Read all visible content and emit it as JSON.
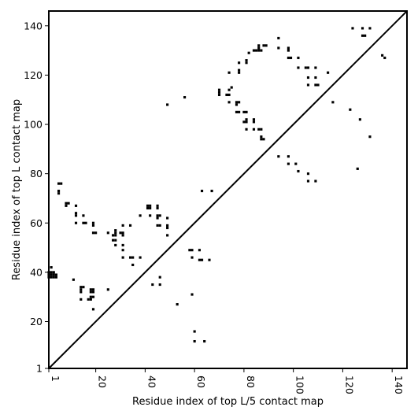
{
  "chart_data": {
    "type": "scatter",
    "title": "",
    "xlabel": "Residue index of top L/5 contact map",
    "ylabel": "Residue index of top L contact map",
    "xlim": [
      1,
      146
    ],
    "ylim": [
      1,
      146
    ],
    "xticks": [
      1,
      20,
      40,
      60,
      80,
      100,
      120,
      140
    ],
    "yticks": [
      1,
      20,
      40,
      60,
      80,
      100,
      120,
      140
    ],
    "grid": false,
    "legend": "none",
    "marker_color": "#000000",
    "diagonal": [
      [
        1,
        1
      ],
      [
        146,
        146
      ]
    ],
    "upper_triangle_contacts": [
      [
        94,
        135
      ],
      [
        94,
        131
      ],
      [
        88,
        132
      ],
      [
        89,
        132
      ],
      [
        86,
        132
      ],
      [
        86,
        131
      ],
      [
        84,
        130
      ],
      [
        85,
        130
      ],
      [
        86,
        130
      ],
      [
        87,
        130
      ],
      [
        82,
        129
      ],
      [
        81,
        126
      ],
      [
        81,
        125
      ],
      [
        78,
        125
      ],
      [
        78,
        122
      ],
      [
        78,
        121
      ],
      [
        74,
        121
      ],
      [
        70,
        114
      ],
      [
        70,
        113
      ],
      [
        70,
        112
      ],
      [
        74,
        114
      ],
      [
        73,
        112
      ],
      [
        74,
        112
      ],
      [
        74,
        109
      ],
      [
        77,
        109
      ],
      [
        78,
        109
      ],
      [
        77,
        108
      ],
      [
        77,
        105
      ],
      [
        78,
        105
      ],
      [
        80,
        105
      ],
      [
        81,
        105
      ],
      [
        80,
        101
      ],
      [
        81,
        102
      ],
      [
        81,
        101
      ],
      [
        84,
        102
      ],
      [
        84,
        101
      ],
      [
        81,
        98
      ],
      [
        84,
        98
      ],
      [
        86,
        98
      ],
      [
        87,
        98
      ],
      [
        87,
        95
      ],
      [
        87,
        94
      ],
      [
        88,
        94
      ],
      [
        75,
        115
      ],
      [
        49,
        108
      ],
      [
        56,
        111
      ],
      [
        98,
        131
      ],
      [
        98,
        130
      ],
      [
        98,
        127
      ],
      [
        99,
        127
      ],
      [
        102,
        127
      ],
      [
        102,
        123
      ],
      [
        105,
        123
      ],
      [
        106,
        123
      ],
      [
        109,
        123
      ],
      [
        106,
        119
      ],
      [
        109,
        119
      ],
      [
        106,
        116
      ],
      [
        109,
        116
      ],
      [
        110,
        116
      ],
      [
        114,
        121
      ],
      [
        116,
        109
      ],
      [
        123,
        106
      ],
      [
        127,
        102
      ],
      [
        131,
        95
      ],
      [
        124,
        139
      ],
      [
        128,
        139
      ],
      [
        131,
        139
      ],
      [
        128,
        136
      ],
      [
        129,
        136
      ],
      [
        136,
        128
      ],
      [
        137,
        127
      ],
      [
        94,
        87
      ],
      [
        98,
        87
      ],
      [
        98,
        84
      ],
      [
        101,
        84
      ],
      [
        102,
        81
      ],
      [
        106,
        80
      ],
      [
        106,
        77
      ],
      [
        109,
        77
      ],
      [
        126,
        82
      ]
    ],
    "lower_triangle_contacts": [
      [
        1,
        40
      ],
      [
        1,
        39
      ],
      [
        1,
        38
      ],
      [
        2,
        40
      ],
      [
        2,
        39
      ],
      [
        2,
        38
      ],
      [
        3,
        40
      ],
      [
        3,
        39
      ],
      [
        3,
        38
      ],
      [
        4,
        39
      ],
      [
        4,
        38
      ],
      [
        2,
        42
      ],
      [
        5,
        76
      ],
      [
        6,
        76
      ],
      [
        5,
        73
      ],
      [
        5,
        72
      ],
      [
        8,
        68
      ],
      [
        9,
        68
      ],
      [
        8,
        67
      ],
      [
        12,
        67
      ],
      [
        12,
        64
      ],
      [
        12,
        63
      ],
      [
        12,
        60
      ],
      [
        15,
        63
      ],
      [
        15,
        60
      ],
      [
        16,
        60
      ],
      [
        19,
        60
      ],
      [
        19,
        59
      ],
      [
        19,
        56
      ],
      [
        20,
        56
      ],
      [
        11,
        37
      ],
      [
        14,
        34
      ],
      [
        15,
        34
      ],
      [
        14,
        33
      ],
      [
        14,
        32
      ],
      [
        18,
        33
      ],
      [
        19,
        33
      ],
      [
        18,
        32
      ],
      [
        19,
        32
      ],
      [
        18,
        30
      ],
      [
        19,
        30
      ],
      [
        17,
        29
      ],
      [
        18,
        29
      ],
      [
        14,
        29
      ],
      [
        19,
        25
      ],
      [
        25,
        33
      ],
      [
        25,
        56
      ],
      [
        28,
        57
      ],
      [
        28,
        56
      ],
      [
        27,
        55
      ],
      [
        28,
        55
      ],
      [
        30,
        56
      ],
      [
        31,
        56
      ],
      [
        31,
        55
      ],
      [
        27,
        53
      ],
      [
        28,
        53
      ],
      [
        28,
        51
      ],
      [
        31,
        51
      ],
      [
        31,
        59
      ],
      [
        34,
        59
      ],
      [
        31,
        49
      ],
      [
        31,
        46
      ],
      [
        34,
        46
      ],
      [
        35,
        46
      ],
      [
        38,
        46
      ],
      [
        35,
        43
      ],
      [
        38,
        63
      ],
      [
        41,
        67
      ],
      [
        42,
        67
      ],
      [
        41,
        66
      ],
      [
        42,
        66
      ],
      [
        45,
        67
      ],
      [
        45,
        66
      ],
      [
        42,
        63
      ],
      [
        45,
        63
      ],
      [
        46,
        63
      ],
      [
        45,
        62
      ],
      [
        49,
        62
      ],
      [
        45,
        59
      ],
      [
        46,
        59
      ],
      [
        49,
        59
      ],
      [
        49,
        58
      ],
      [
        49,
        55
      ],
      [
        43,
        35
      ],
      [
        46,
        38
      ],
      [
        46,
        35
      ],
      [
        53,
        27
      ],
      [
        58,
        49
      ],
      [
        59,
        49
      ],
      [
        62,
        49
      ],
      [
        59,
        46
      ],
      [
        62,
        45
      ],
      [
        63,
        45
      ],
      [
        66,
        45
      ],
      [
        63,
        73
      ],
      [
        67,
        73
      ],
      [
        59,
        31
      ],
      [
        60,
        16
      ],
      [
        60,
        12
      ],
      [
        64,
        12
      ]
    ]
  }
}
